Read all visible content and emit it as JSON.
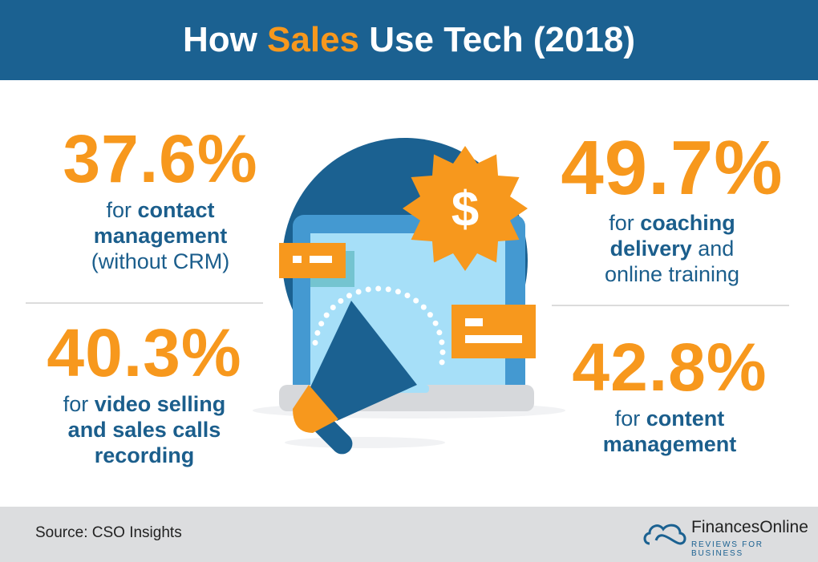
{
  "title": {
    "pre": "How ",
    "highlight": "Sales",
    "post": " Use Tech (2018)"
  },
  "colors": {
    "header": "#1b6191",
    "accent": "#f7981d",
    "text": "#1b5e8c",
    "footer": "#dcdddf"
  },
  "stats": [
    {
      "value": "37.6%",
      "lines": [
        [
          "for ",
          "contact"
        ],
        [
          "",
          "management"
        ],
        [
          "",
          "(without CRM)"
        ]
      ]
    },
    {
      "value": "40.3%",
      "lines": [
        [
          "for ",
          "video selling"
        ],
        [
          "and ",
          "sales calls"
        ],
        [
          "",
          "recording"
        ]
      ]
    },
    {
      "value": "49.7%",
      "lines": [
        [
          "for ",
          "coaching"
        ],
        [
          "delivery ",
          "and"
        ],
        [
          "online training",
          ""
        ]
      ]
    },
    {
      "value": "42.8%",
      "lines": [
        [
          "for ",
          "content"
        ],
        [
          "",
          "management"
        ]
      ]
    }
  ],
  "illustration": {
    "icons": [
      "laptop-icon",
      "megaphone-icon",
      "dollar-badge-icon",
      "message-card-icon"
    ],
    "symbol": "$"
  },
  "footer": {
    "source": "Source: CSO Insights",
    "brand": "FinancesOnline",
    "tagline": "REVIEWS FOR BUSINESS"
  }
}
